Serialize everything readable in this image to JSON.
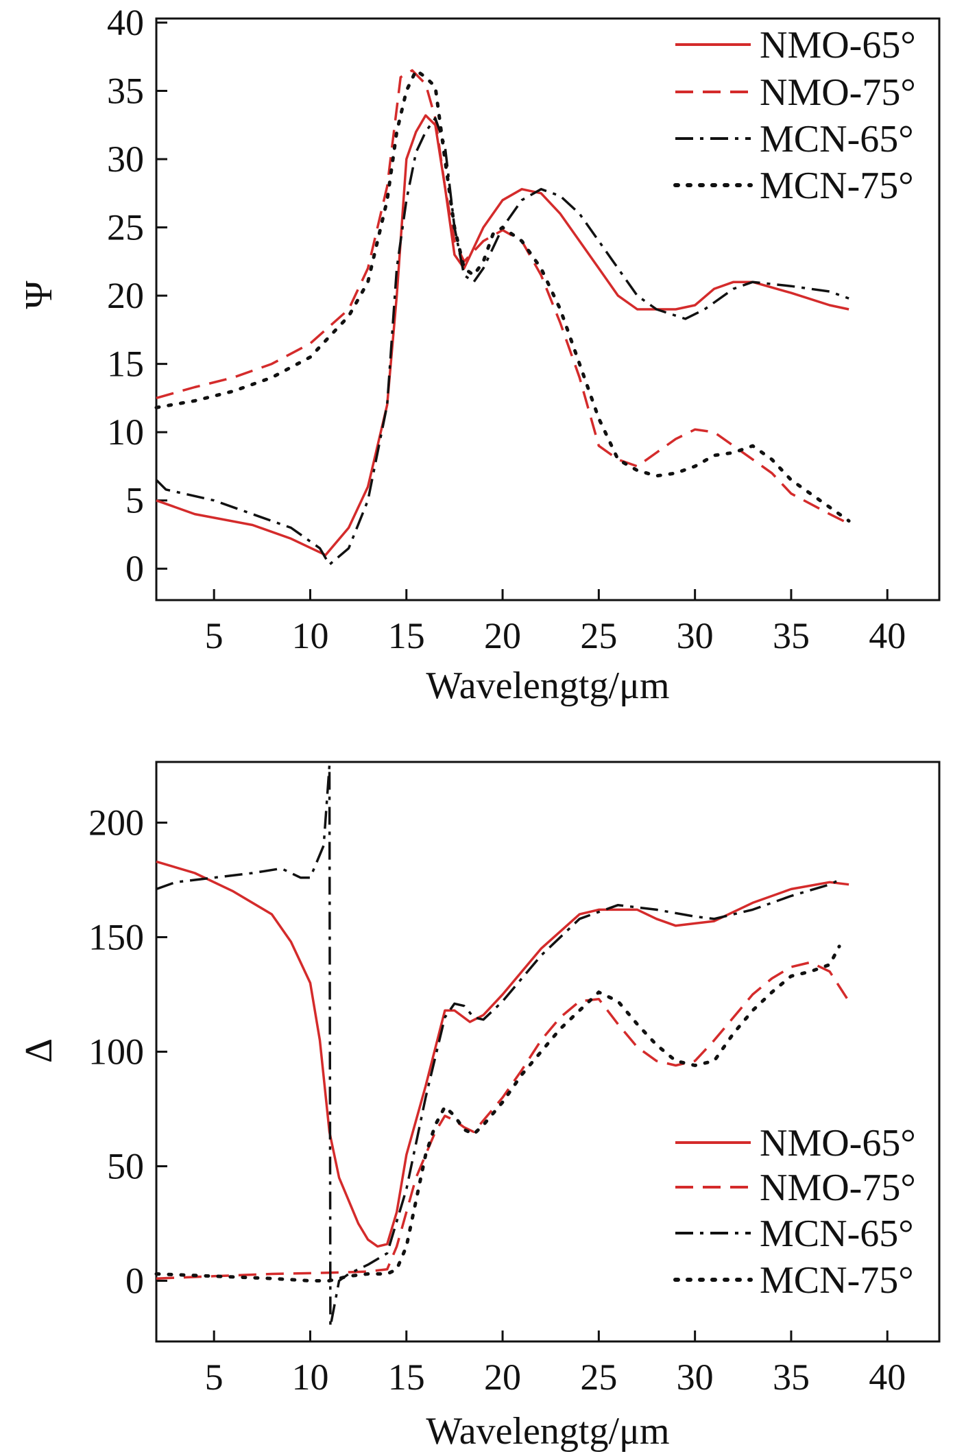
{
  "colors": {
    "red": "#d42b2b",
    "black": "#111111"
  },
  "chart_data": [
    {
      "type": "line",
      "xlabel": "Wavelengtg/μm",
      "ylabel": "Ψ",
      "xlim": [
        2,
        42.7
      ],
      "ylim": [
        -2.3,
        40.3
      ],
      "xticks": [
        5,
        10,
        15,
        20,
        25,
        30,
        35,
        40
      ],
      "yticks": [
        0,
        5,
        10,
        15,
        20,
        25,
        30,
        35,
        40
      ],
      "legend_position": "top-right",
      "series": [
        {
          "name": "NMO-65°",
          "color": "#d42b2b",
          "style": "solid",
          "x": [
            2,
            4,
            7,
            9,
            10.8,
            12,
            13,
            14,
            14.5,
            15,
            15.5,
            16,
            16.5,
            17,
            17.5,
            18,
            19,
            20,
            21,
            22,
            23,
            24,
            25,
            26,
            27,
            29,
            30,
            31,
            32,
            33,
            35,
            37,
            38
          ],
          "y": [
            5,
            4,
            3.2,
            2.2,
            1,
            3,
            6,
            12,
            20,
            30,
            32,
            33.2,
            32.5,
            28,
            23,
            22,
            25,
            27,
            27.8,
            27.5,
            26,
            24,
            22,
            20,
            19,
            19,
            19.3,
            20.5,
            21,
            21,
            20.2,
            19.3,
            19
          ]
        },
        {
          "name": "NMO-75°",
          "color": "#d42b2b",
          "style": "dashed",
          "x": [
            2,
            4,
            6,
            8,
            10,
            12,
            13,
            14,
            14.7,
            15.3,
            16,
            16.5,
            17,
            17.5,
            18,
            19,
            20,
            21,
            22,
            23,
            24,
            25,
            26,
            27,
            28,
            29,
            30,
            31,
            32,
            34,
            35,
            37,
            38
          ],
          "y": [
            12.5,
            13.3,
            14,
            15,
            16.5,
            19,
            22,
            28,
            36,
            36.5,
            35.5,
            33,
            28,
            24,
            22.5,
            24,
            24.8,
            24,
            21.5,
            18,
            14,
            9,
            8,
            7.5,
            8.5,
            9.5,
            10.2,
            10,
            9,
            7,
            5.5,
            4,
            3.3
          ]
        },
        {
          "name": "MCN-65°",
          "color": "#111111",
          "style": "dashdot",
          "x": [
            2,
            2.5,
            5,
            7,
            9,
            10.5,
            11,
            12,
            13,
            14,
            14.5,
            15,
            15.5,
            16,
            16.5,
            17,
            17.5,
            18,
            18.5,
            19,
            20,
            21,
            22,
            23,
            24,
            25,
            26,
            27,
            28,
            29.5,
            30.5,
            32,
            33,
            35,
            37,
            38
          ],
          "y": [
            6.5,
            5.8,
            5,
            4,
            3,
            1.5,
            0.3,
            1.5,
            5,
            12,
            22,
            27,
            30.5,
            32,
            33,
            31,
            25,
            21.5,
            21,
            22,
            25,
            27,
            27.8,
            27.3,
            26,
            24,
            22,
            20,
            19,
            18.3,
            19,
            20.5,
            21,
            20.7,
            20.3,
            19.8
          ]
        },
        {
          "name": "MCN-75°",
          "color": "#111111",
          "style": "dotted",
          "x": [
            2,
            4,
            6,
            8,
            10,
            11,
            12,
            13,
            14,
            14.5,
            15,
            15.5,
            16,
            16.5,
            17,
            17.5,
            18,
            18.5,
            19,
            19.5,
            20,
            21,
            22,
            23,
            24,
            25,
            26,
            27,
            28,
            29,
            30,
            31,
            32,
            33,
            34,
            35,
            37,
            38
          ],
          "y": [
            11.8,
            12.3,
            13,
            14,
            15.5,
            17,
            18.5,
            21,
            27,
            32,
            35,
            36.5,
            36,
            35.3,
            30,
            25,
            22,
            21.5,
            22.5,
            24.5,
            25,
            24,
            22,
            19,
            15,
            11,
            8,
            7.2,
            6.8,
            7,
            7.5,
            8.3,
            8.5,
            9,
            8,
            6.5,
            4.5,
            3.5
          ]
        }
      ]
    },
    {
      "type": "line",
      "xlabel": "Wavelengtg/μm",
      "ylabel": "Δ",
      "xlim": [
        2,
        42.7
      ],
      "ylim": [
        -26.5,
        226.5
      ],
      "xticks": [
        5,
        10,
        15,
        20,
        25,
        30,
        35,
        40
      ],
      "yticks": [
        0,
        50,
        100,
        150,
        200
      ],
      "legend_position": "bottom-right",
      "series": [
        {
          "name": "NMO-65°",
          "color": "#d42b2b",
          "style": "solid",
          "x": [
            2,
            4,
            6,
            8,
            9,
            10,
            10.5,
            11,
            11.5,
            12,
            12.5,
            13,
            13.5,
            14,
            14.5,
            15,
            16,
            17,
            17.5,
            18.3,
            19,
            20,
            22,
            24,
            25,
            27,
            28,
            29,
            31,
            33,
            35,
            37,
            38
          ],
          "y": [
            183,
            178,
            170,
            160,
            148,
            130,
            105,
            65,
            45,
            35,
            25,
            18,
            15,
            16,
            30,
            55,
            85,
            118,
            118,
            113,
            116,
            125,
            145,
            160,
            162,
            162,
            158,
            155,
            157,
            165,
            171,
            174,
            173
          ]
        },
        {
          "name": "NMO-75°",
          "color": "#d42b2b",
          "style": "dashed",
          "x": [
            2,
            5,
            8,
            11,
            13,
            14,
            14.5,
            15,
            15.5,
            16,
            16.5,
            17,
            17.5,
            18,
            18.5,
            19,
            20,
            21,
            22,
            23,
            24,
            25,
            26,
            27,
            28,
            29,
            30,
            31,
            32,
            33,
            34,
            35,
            36,
            37,
            38
          ],
          "y": [
            1,
            2,
            3,
            3.5,
            4,
            5,
            15,
            30,
            45,
            55,
            65,
            72,
            70,
            67,
            65,
            70,
            80,
            92,
            105,
            115,
            122,
            123,
            112,
            102,
            96,
            94,
            96,
            105,
            115,
            125,
            132,
            137,
            139,
            135,
            122
          ]
        },
        {
          "name": "MCN-65°",
          "color": "#111111",
          "style": "dashdot",
          "x": [
            2,
            3,
            5,
            7,
            8.5,
            9.5,
            10,
            10.7,
            11,
            11.05,
            11.5,
            12,
            13,
            14,
            15,
            16,
            17,
            17.5,
            18,
            18.5,
            19,
            20,
            22,
            24,
            26,
            28,
            30,
            31,
            33,
            35,
            37,
            37.5
          ],
          "y": [
            171,
            174,
            176,
            178,
            180,
            176,
            176,
            190,
            225,
            -20,
            0,
            3,
            7,
            12,
            40,
            80,
            115,
            121,
            120,
            115,
            114,
            122,
            142,
            158,
            164,
            162,
            159,
            158,
            162,
            168,
            173,
            175
          ]
        },
        {
          "name": "MCN-75°",
          "color": "#111111",
          "style": "dotted",
          "x": [
            2,
            5,
            8,
            10,
            11,
            12,
            13,
            14,
            14.5,
            15,
            15.5,
            16,
            16.5,
            17,
            17.5,
            18,
            18.5,
            19,
            20,
            21,
            22,
            23,
            24,
            25,
            26,
            27,
            28,
            29,
            30,
            31,
            32,
            33,
            34,
            35,
            36,
            37,
            37.5
          ],
          "y": [
            3,
            2,
            1,
            0,
            0,
            2,
            3,
            3,
            5,
            15,
            35,
            55,
            68,
            76,
            72,
            66,
            64,
            68,
            78,
            90,
            100,
            110,
            118,
            126,
            122,
            112,
            103,
            96,
            94,
            96,
            108,
            118,
            126,
            133,
            135,
            138,
            146
          ]
        }
      ]
    }
  ]
}
